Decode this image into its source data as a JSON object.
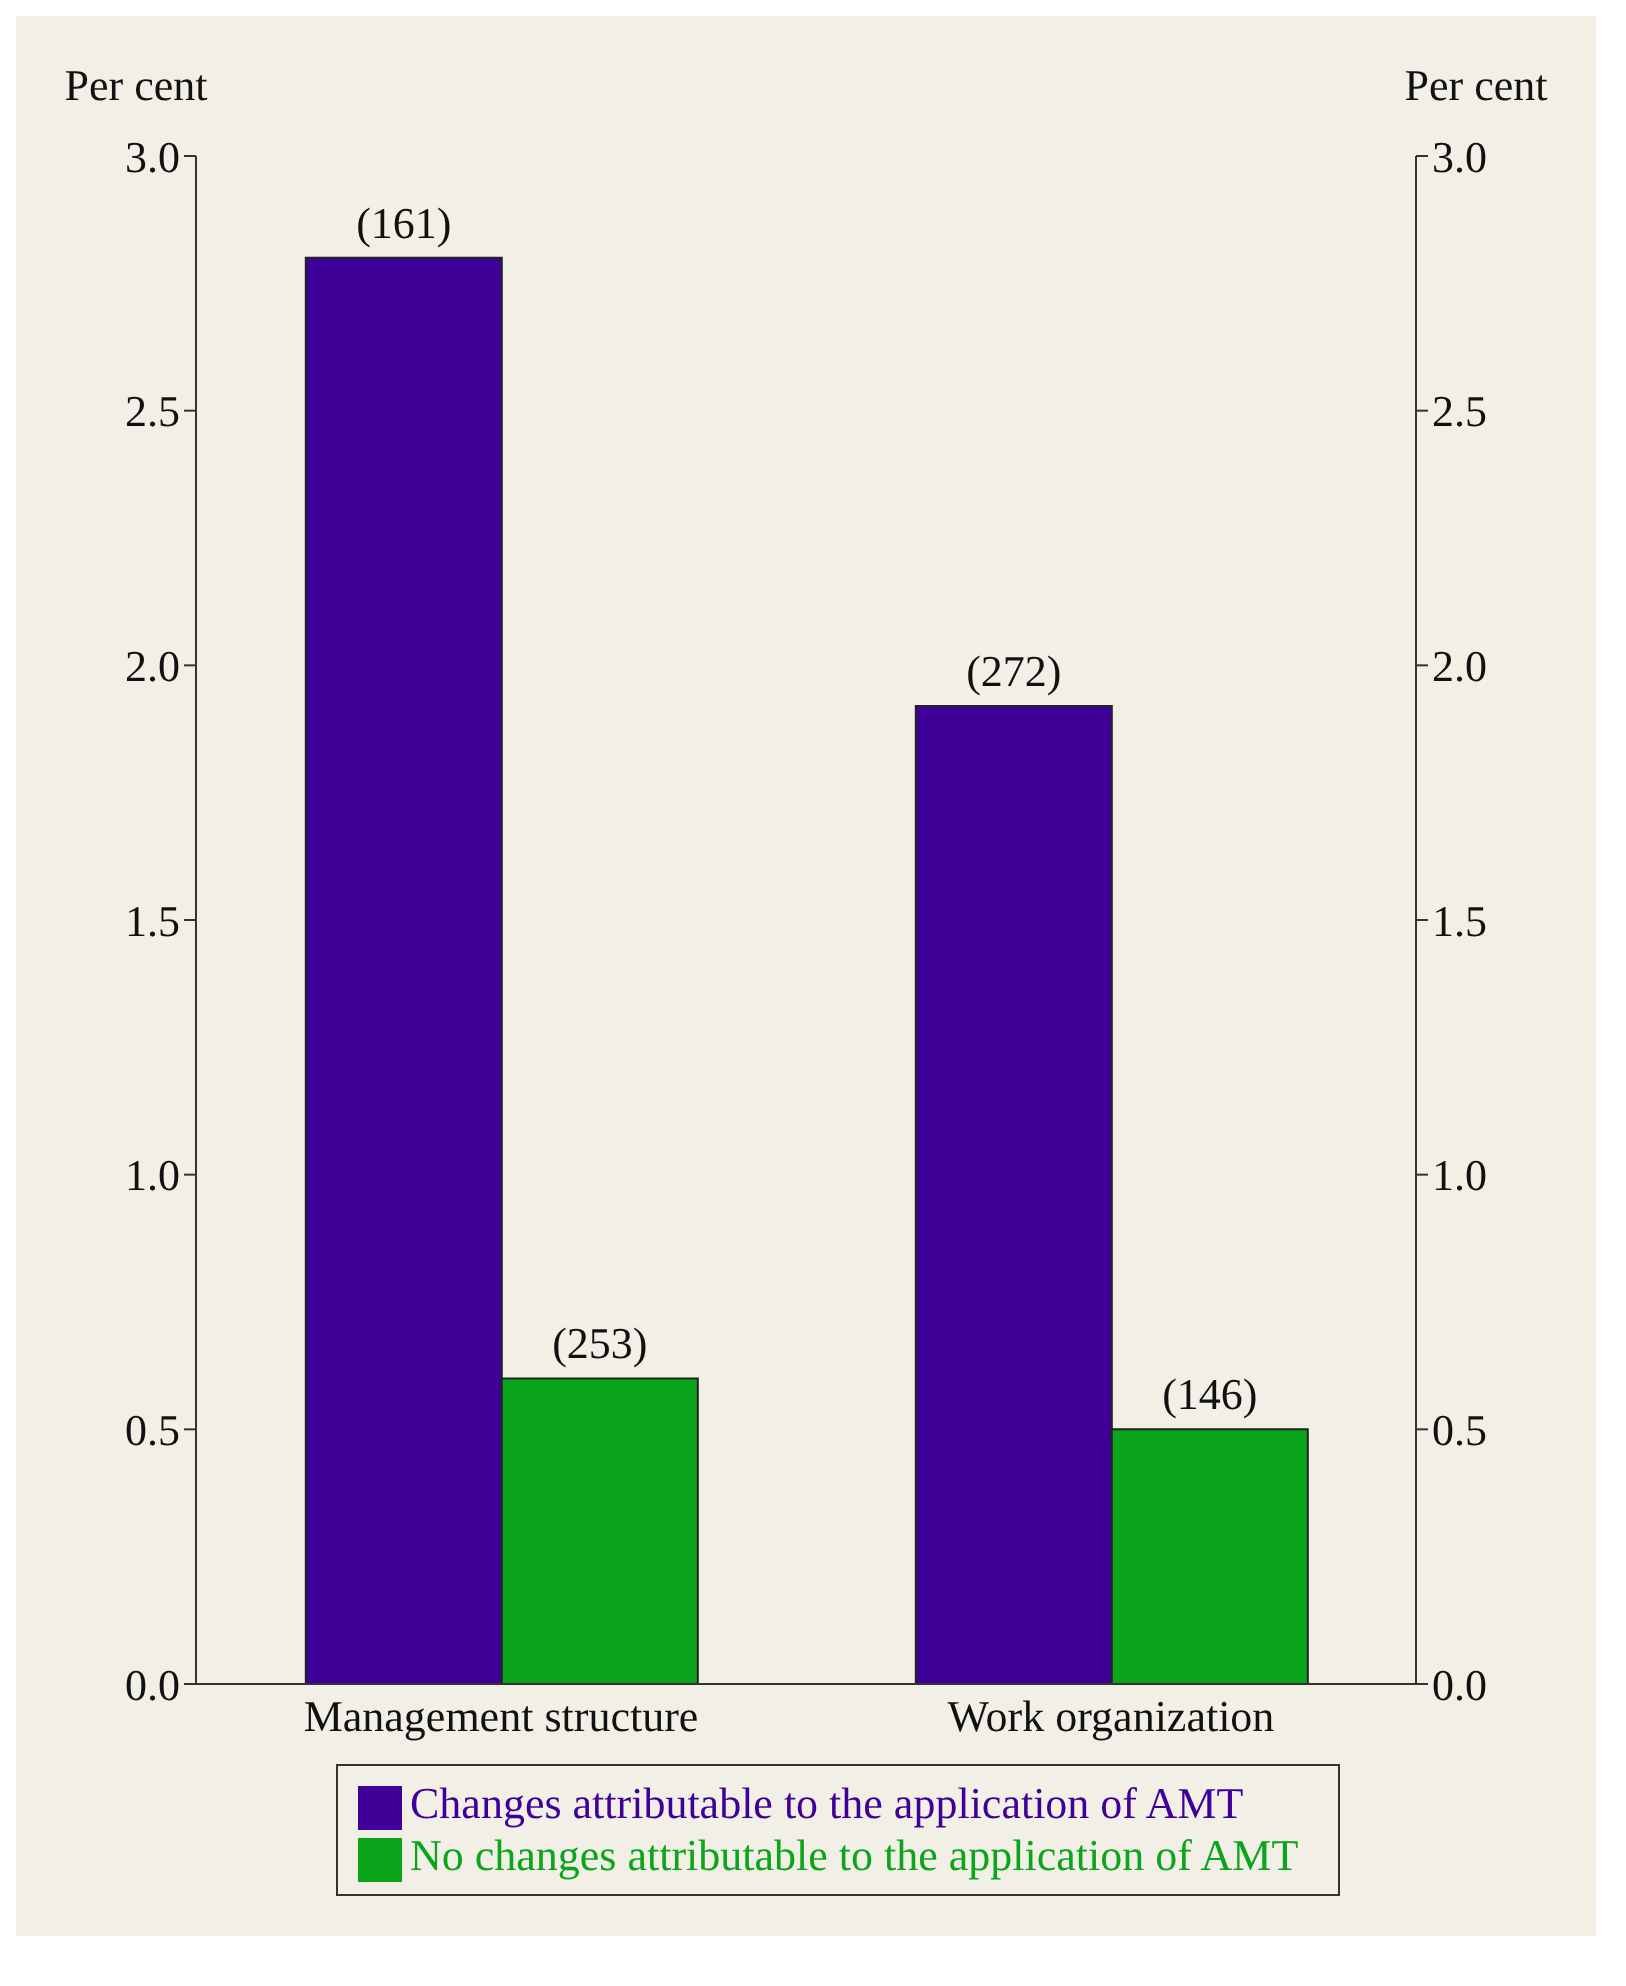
{
  "chart_data": {
    "type": "bar",
    "categories": [
      "Management structure",
      "Work organization"
    ],
    "series": [
      {
        "name": "Changes attributable to the application of AMT",
        "color": "#3f0099",
        "values": [
          2.8,
          1.92
        ]
      },
      {
        "name": "No changes attributable to the application of AMT",
        "color": "#0aa51a",
        "values": [
          0.6,
          0.5
        ]
      }
    ],
    "annotations": [
      {
        "text": "(161)",
        "x": "Management structure",
        "y": 2.8
      },
      {
        "text": "(253)",
        "x": "Management structure",
        "y": 0.6
      },
      {
        "text": "(272)",
        "x": "Work organization",
        "y": 1.92
      },
      {
        "text": "(146)",
        "x": "Work organization",
        "y": 0.5
      }
    ],
    "ylabel": "Per cent",
    "y2label": "Per cent",
    "ylim": [
      0,
      3.0
    ],
    "yticks": [
      {
        "value": 0,
        "label": "0.0"
      },
      {
        "value": 0.5,
        "label": "0.5"
      },
      {
        "value": 1,
        "label": "1.0"
      },
      {
        "value": 1.5,
        "label": "1.5"
      },
      {
        "value": 2,
        "label": "2.0"
      },
      {
        "value": 2.5,
        "label": "2.5"
      },
      {
        "value": 3,
        "label": "3.0"
      }
    ],
    "y2lim": [
      0,
      3.0
    ],
    "y2ticks": [
      {
        "value": 0,
        "label": "0.0"
      },
      {
        "value": 0.5,
        "label": "0.5"
      },
      {
        "value": 1,
        "label": "1.0"
      },
      {
        "value": 1.5,
        "label": "1.5"
      },
      {
        "value": 2,
        "label": "2.0"
      },
      {
        "value": 2.5,
        "label": "2.5"
      },
      {
        "value": 3,
        "label": "3.0"
      }
    ],
    "grid": false,
    "legend": "bottom"
  }
}
